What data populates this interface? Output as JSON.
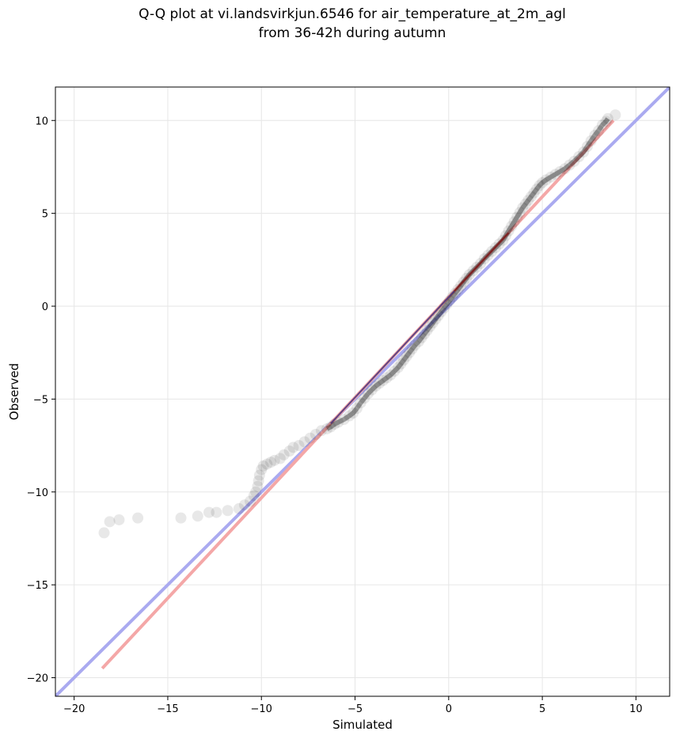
{
  "chart_data": {
    "type": "scatter",
    "title_lines": [
      "Q-Q plot at vi.landsvirkjun.6546 for air_temperature_at_2m_agl",
      "from 36-42h during autumn"
    ],
    "xlabel": "Simulated",
    "ylabel": "Observed",
    "xlim": [
      -21,
      11.8
    ],
    "ylim": [
      -21,
      11.8
    ],
    "xticks": [
      -20,
      -15,
      -10,
      -5,
      0,
      5,
      10
    ],
    "yticks": [
      -20,
      -15,
      -10,
      -5,
      0,
      5,
      10
    ],
    "xtick_labels": [
      "−20",
      "−15",
      "−10",
      "−5",
      "0",
      "5",
      "10"
    ],
    "ytick_labels": [
      "−20",
      "−15",
      "−10",
      "−5",
      "0",
      "5",
      "10"
    ],
    "grid": true,
    "reference_lines": [
      {
        "role": "identity",
        "color": "#aaaaf0",
        "points": [
          [
            -21,
            -21
          ],
          [
            11.8,
            11.8
          ]
        ]
      },
      {
        "role": "fit",
        "color": "#f4a7a7",
        "points": [
          [
            -18.5,
            -19.5
          ],
          [
            8.8,
            10.0
          ]
        ]
      }
    ],
    "points": [
      [
        -18.4,
        -12.2
      ],
      [
        -18.1,
        -11.6
      ],
      [
        -17.6,
        -11.5
      ],
      [
        -16.6,
        -11.4
      ],
      [
        -14.3,
        -11.4
      ],
      [
        -13.4,
        -11.3
      ],
      [
        -12.8,
        -11.1
      ],
      [
        -12.4,
        -11.1
      ],
      [
        -11.8,
        -11.0
      ],
      [
        -11.2,
        -10.9
      ],
      [
        -10.9,
        -10.7
      ],
      [
        -10.6,
        -10.5
      ],
      [
        -10.4,
        -10.2
      ],
      [
        -10.3,
        -10.0
      ],
      [
        -10.2,
        -9.7
      ],
      [
        -10.15,
        -9.4
      ],
      [
        -10.1,
        -9.1
      ],
      [
        -10.0,
        -8.8
      ],
      [
        -9.9,
        -8.6
      ],
      [
        -9.7,
        -8.5
      ],
      [
        -9.5,
        -8.4
      ],
      [
        -9.3,
        -8.3
      ],
      [
        -9.0,
        -8.2
      ],
      [
        -8.8,
        -8.0
      ],
      [
        -8.5,
        -7.8
      ],
      [
        -8.3,
        -7.6
      ],
      [
        -8.0,
        -7.5
      ],
      [
        -7.7,
        -7.3
      ],
      [
        -7.4,
        -7.1
      ],
      [
        -7.1,
        -6.9
      ],
      [
        -6.8,
        -6.7
      ],
      [
        -6.5,
        -6.6
      ],
      [
        -6.3,
        -6.5
      ],
      [
        -6.1,
        -6.35
      ],
      [
        -5.9,
        -6.25
      ],
      [
        -5.6,
        -6.1
      ],
      [
        -5.3,
        -5.9
      ],
      [
        -5.1,
        -5.75
      ],
      [
        -4.9,
        -5.5
      ],
      [
        -4.7,
        -5.2
      ],
      [
        -4.5,
        -4.95
      ],
      [
        -4.3,
        -4.7
      ],
      [
        -4.1,
        -4.5
      ],
      [
        -3.9,
        -4.3
      ],
      [
        -3.7,
        -4.15
      ],
      [
        -3.5,
        -4.0
      ],
      [
        -3.3,
        -3.85
      ],
      [
        -3.1,
        -3.7
      ],
      [
        -2.9,
        -3.5
      ],
      [
        -2.7,
        -3.3
      ],
      [
        -2.55,
        -3.1
      ],
      [
        -2.4,
        -2.9
      ],
      [
        -2.25,
        -2.7
      ],
      [
        -2.1,
        -2.5
      ],
      [
        -1.95,
        -2.3
      ],
      [
        -1.8,
        -2.1
      ],
      [
        -1.6,
        -1.9
      ],
      [
        -1.45,
        -1.7
      ],
      [
        -1.3,
        -1.5
      ],
      [
        -1.15,
        -1.3
      ],
      [
        -1.0,
        -1.1
      ],
      [
        -0.85,
        -0.9
      ],
      [
        -0.7,
        -0.7
      ],
      [
        -0.55,
        -0.5
      ],
      [
        -0.4,
        -0.3
      ],
      [
        -0.25,
        -0.1
      ],
      [
        -0.1,
        0.1
      ],
      [
        0.05,
        0.3
      ],
      [
        0.2,
        0.5
      ],
      [
        0.35,
        0.7
      ],
      [
        0.5,
        0.9
      ],
      [
        0.65,
        1.1
      ],
      [
        0.8,
        1.3
      ],
      [
        0.95,
        1.5
      ],
      [
        1.1,
        1.7
      ],
      [
        1.3,
        1.9
      ],
      [
        1.5,
        2.1
      ],
      [
        1.7,
        2.3
      ],
      [
        1.9,
        2.55
      ],
      [
        2.1,
        2.75
      ],
      [
        2.3,
        2.95
      ],
      [
        2.5,
        3.15
      ],
      [
        2.7,
        3.35
      ],
      [
        2.9,
        3.55
      ],
      [
        3.05,
        3.8
      ],
      [
        3.2,
        4.05
      ],
      [
        3.35,
        4.3
      ],
      [
        3.5,
        4.55
      ],
      [
        3.65,
        4.8
      ],
      [
        3.8,
        5.05
      ],
      [
        3.95,
        5.3
      ],
      [
        4.1,
        5.5
      ],
      [
        4.25,
        5.7
      ],
      [
        4.4,
        5.9
      ],
      [
        4.55,
        6.1
      ],
      [
        4.7,
        6.3
      ],
      [
        4.85,
        6.5
      ],
      [
        5.0,
        6.65
      ],
      [
        5.2,
        6.8
      ],
      [
        5.45,
        6.95
      ],
      [
        5.7,
        7.1
      ],
      [
        5.95,
        7.25
      ],
      [
        6.2,
        7.4
      ],
      [
        6.45,
        7.6
      ],
      [
        6.7,
        7.8
      ],
      [
        6.95,
        8.05
      ],
      [
        7.2,
        8.3
      ],
      [
        7.4,
        8.6
      ],
      [
        7.6,
        8.9
      ],
      [
        7.8,
        9.2
      ],
      [
        8.0,
        9.45
      ],
      [
        8.2,
        9.75
      ],
      [
        8.4,
        9.95
      ],
      [
        8.5,
        10.1
      ],
      [
        8.9,
        10.3
      ]
    ]
  }
}
